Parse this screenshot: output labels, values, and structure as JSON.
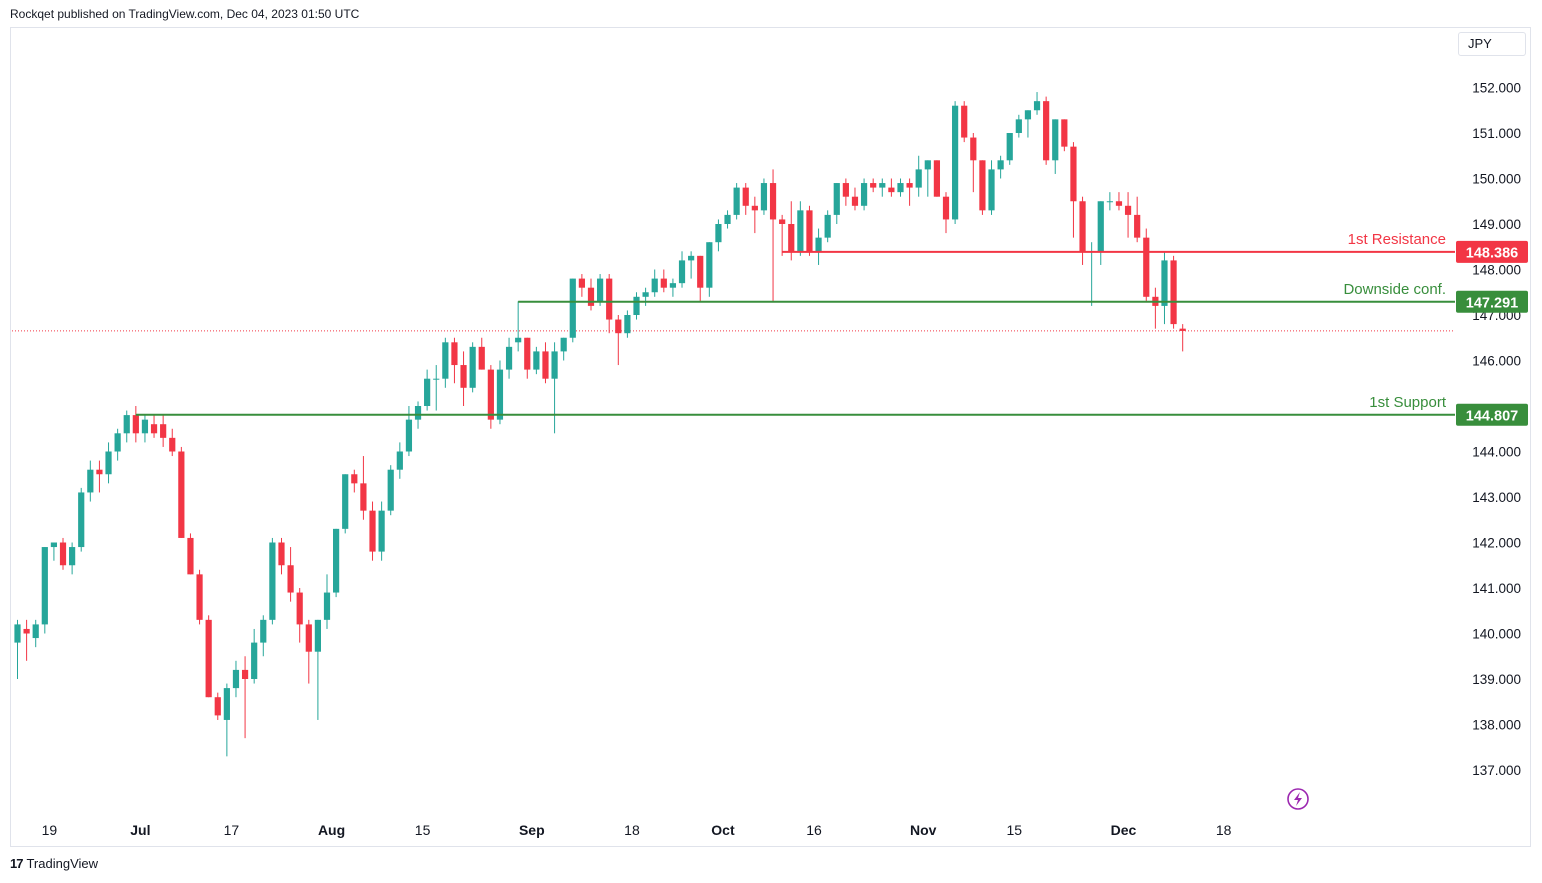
{
  "header": {
    "published_text": "Rockqet published on TradingView.com, Dec 04, 2023 01:50 UTC"
  },
  "currency": "JPY",
  "footer": {
    "brand": "TradingView",
    "logo_glyph": "17"
  },
  "colors": {
    "up": "#26a69a",
    "down": "#f23645",
    "support": "#388e3c",
    "resistance": "#f23645"
  },
  "chart_data": {
    "type": "candlestick",
    "currency": "JPY",
    "ylim": [
      136.4,
      152.8
    ],
    "y_ticks": [
      {
        "value": 137,
        "label": "137.000"
      },
      {
        "value": 138,
        "label": "138.000"
      },
      {
        "value": 139,
        "label": "139.000"
      },
      {
        "value": 140,
        "label": "140.000"
      },
      {
        "value": 141,
        "label": "141.000"
      },
      {
        "value": 142,
        "label": "142.000"
      },
      {
        "value": 143,
        "label": "143.000"
      },
      {
        "value": 144,
        "label": "144.000"
      },
      {
        "value": 146,
        "label": "146.000"
      },
      {
        "value": 147,
        "label": "147.000"
      },
      {
        "value": 148,
        "label": "148.000"
      },
      {
        "value": 149,
        "label": "149.000"
      },
      {
        "value": 150,
        "label": "150.000"
      },
      {
        "value": 151,
        "label": "151.000"
      },
      {
        "value": 152,
        "label": "152.000"
      }
    ],
    "x_ticks": [
      {
        "label": "19",
        "bar": 3.5,
        "bold": false
      },
      {
        "label": "Jul",
        "bar": 13.5,
        "bold": true
      },
      {
        "label": "17",
        "bar": 23.5,
        "bold": false
      },
      {
        "label": "Aug",
        "bar": 34.5,
        "bold": true
      },
      {
        "label": "15",
        "bar": 44.5,
        "bold": false
      },
      {
        "label": "Sep",
        "bar": 56.5,
        "bold": true
      },
      {
        "label": "18",
        "bar": 67.5,
        "bold": false
      },
      {
        "label": "Oct",
        "bar": 77.5,
        "bold": true
      },
      {
        "label": "16",
        "bar": 87.5,
        "bold": false
      },
      {
        "label": "Nov",
        "bar": 99.5,
        "bold": true
      },
      {
        "label": "15",
        "bar": 109.5,
        "bold": false
      },
      {
        "label": "Dec",
        "bar": 121.5,
        "bold": true
      },
      {
        "label": "18",
        "bar": 132.5,
        "bold": false
      }
    ],
    "levels": [
      {
        "name": "1st Resistance",
        "value": 148.386,
        "tag": "148.386",
        "color": "#f23645",
        "start_bar": 84
      },
      {
        "name": "Downside conf.",
        "value": 147.291,
        "tag": "147.291",
        "color": "#388e3c",
        "start_bar": 55
      },
      {
        "name": "1st Support",
        "value": 144.807,
        "tag": "144.807",
        "color": "#388e3c",
        "start_bar": 13
      }
    ],
    "last_price": 146.65,
    "candles": [
      {
        "o": 139.8,
        "h": 140.3,
        "l": 139.0,
        "c": 140.2
      },
      {
        "o": 140.1,
        "h": 140.3,
        "l": 139.4,
        "c": 140.0
      },
      {
        "o": 139.9,
        "h": 140.3,
        "l": 139.7,
        "c": 140.2
      },
      {
        "o": 140.2,
        "h": 141.9,
        "l": 140.0,
        "c": 141.9
      },
      {
        "o": 141.9,
        "h": 142.0,
        "l": 141.6,
        "c": 142.0
      },
      {
        "o": 142.0,
        "h": 142.1,
        "l": 141.4,
        "c": 141.5
      },
      {
        "o": 141.5,
        "h": 142.0,
        "l": 141.3,
        "c": 141.9
      },
      {
        "o": 141.9,
        "h": 143.2,
        "l": 141.8,
        "c": 143.1
      },
      {
        "o": 143.1,
        "h": 143.8,
        "l": 142.9,
        "c": 143.6
      },
      {
        "o": 143.6,
        "h": 143.8,
        "l": 143.1,
        "c": 143.5
      },
      {
        "o": 143.5,
        "h": 144.2,
        "l": 143.3,
        "c": 144.0
      },
      {
        "o": 144.0,
        "h": 144.5,
        "l": 143.8,
        "c": 144.4
      },
      {
        "o": 144.4,
        "h": 144.9,
        "l": 144.2,
        "c": 144.8
      },
      {
        "o": 144.8,
        "h": 145.0,
        "l": 144.2,
        "c": 144.4
      },
      {
        "o": 144.4,
        "h": 144.8,
        "l": 144.2,
        "c": 144.7
      },
      {
        "o": 144.6,
        "h": 144.8,
        "l": 144.3,
        "c": 144.4
      },
      {
        "o": 144.6,
        "h": 144.8,
        "l": 144.1,
        "c": 144.3
      },
      {
        "o": 144.3,
        "h": 144.5,
        "l": 143.9,
        "c": 144.0
      },
      {
        "o": 144.0,
        "h": 144.1,
        "l": 142.1,
        "c": 142.1
      },
      {
        "o": 142.1,
        "h": 142.2,
        "l": 141.3,
        "c": 141.3
      },
      {
        "o": 141.3,
        "h": 141.4,
        "l": 140.2,
        "c": 140.3
      },
      {
        "o": 140.3,
        "h": 140.4,
        "l": 138.6,
        "c": 138.6
      },
      {
        "o": 138.6,
        "h": 138.7,
        "l": 138.1,
        "c": 138.2
      },
      {
        "o": 138.1,
        "h": 138.9,
        "l": 137.3,
        "c": 138.8
      },
      {
        "o": 138.8,
        "h": 139.4,
        "l": 138.6,
        "c": 139.2
      },
      {
        "o": 139.2,
        "h": 139.5,
        "l": 137.7,
        "c": 139.0
      },
      {
        "o": 139.0,
        "h": 140.1,
        "l": 138.9,
        "c": 139.8
      },
      {
        "o": 139.8,
        "h": 140.4,
        "l": 139.5,
        "c": 140.3
      },
      {
        "o": 140.3,
        "h": 142.1,
        "l": 140.2,
        "c": 142.0
      },
      {
        "o": 142.0,
        "h": 142.1,
        "l": 141.3,
        "c": 141.5
      },
      {
        "o": 141.5,
        "h": 141.9,
        "l": 140.7,
        "c": 140.9
      },
      {
        "o": 140.9,
        "h": 141.0,
        "l": 139.8,
        "c": 140.2
      },
      {
        "o": 140.2,
        "h": 140.3,
        "l": 138.9,
        "c": 139.6
      },
      {
        "o": 139.6,
        "h": 140.3,
        "l": 138.1,
        "c": 140.3
      },
      {
        "o": 140.3,
        "h": 141.3,
        "l": 140.1,
        "c": 140.9
      },
      {
        "o": 140.9,
        "h": 142.3,
        "l": 140.8,
        "c": 142.3
      },
      {
        "o": 142.3,
        "h": 143.5,
        "l": 142.2,
        "c": 143.5
      },
      {
        "o": 143.5,
        "h": 143.6,
        "l": 143.1,
        "c": 143.3
      },
      {
        "o": 143.3,
        "h": 143.9,
        "l": 142.5,
        "c": 142.7
      },
      {
        "o": 142.7,
        "h": 142.9,
        "l": 141.6,
        "c": 141.8
      },
      {
        "o": 141.8,
        "h": 142.9,
        "l": 141.6,
        "c": 142.7
      },
      {
        "o": 142.7,
        "h": 143.7,
        "l": 142.6,
        "c": 143.6
      },
      {
        "o": 143.6,
        "h": 144.2,
        "l": 143.4,
        "c": 144.0
      },
      {
        "o": 144.0,
        "h": 145.0,
        "l": 143.9,
        "c": 144.7
      },
      {
        "o": 144.7,
        "h": 145.1,
        "l": 144.5,
        "c": 145.0
      },
      {
        "o": 145.0,
        "h": 145.8,
        "l": 144.9,
        "c": 145.6
      },
      {
        "o": 145.6,
        "h": 145.9,
        "l": 144.9,
        "c": 145.6
      },
      {
        "o": 145.6,
        "h": 146.5,
        "l": 145.4,
        "c": 146.4
      },
      {
        "o": 146.4,
        "h": 146.5,
        "l": 145.5,
        "c": 145.9
      },
      {
        "o": 145.9,
        "h": 146.2,
        "l": 145.0,
        "c": 145.4
      },
      {
        "o": 145.4,
        "h": 146.4,
        "l": 145.3,
        "c": 146.3
      },
      {
        "o": 146.3,
        "h": 146.5,
        "l": 145.8,
        "c": 145.8
      },
      {
        "o": 145.8,
        "h": 145.9,
        "l": 144.5,
        "c": 144.7
      },
      {
        "o": 144.7,
        "h": 146.0,
        "l": 144.6,
        "c": 145.8
      },
      {
        "o": 145.8,
        "h": 146.5,
        "l": 145.6,
        "c": 146.3
      },
      {
        "o": 146.4,
        "h": 147.3,
        "l": 146.2,
        "c": 146.5
      },
      {
        "o": 146.5,
        "h": 146.5,
        "l": 145.6,
        "c": 145.8
      },
      {
        "o": 145.8,
        "h": 146.3,
        "l": 145.7,
        "c": 146.2
      },
      {
        "o": 146.2,
        "h": 146.4,
        "l": 145.5,
        "c": 145.6
      },
      {
        "o": 145.6,
        "h": 146.4,
        "l": 144.4,
        "c": 146.2
      },
      {
        "o": 146.2,
        "h": 146.5,
        "l": 146.0,
        "c": 146.5
      },
      {
        "o": 146.5,
        "h": 147.8,
        "l": 146.4,
        "c": 147.8
      },
      {
        "o": 147.8,
        "h": 147.9,
        "l": 147.4,
        "c": 147.6
      },
      {
        "o": 147.6,
        "h": 147.8,
        "l": 147.1,
        "c": 147.2
      },
      {
        "o": 147.3,
        "h": 147.9,
        "l": 147.2,
        "c": 147.8
      },
      {
        "o": 147.8,
        "h": 147.9,
        "l": 146.6,
        "c": 146.9
      },
      {
        "o": 146.9,
        "h": 147.0,
        "l": 145.9,
        "c": 146.6
      },
      {
        "o": 146.6,
        "h": 147.1,
        "l": 146.5,
        "c": 147.0
      },
      {
        "o": 147.0,
        "h": 147.5,
        "l": 146.9,
        "c": 147.4
      },
      {
        "o": 147.4,
        "h": 147.6,
        "l": 147.2,
        "c": 147.5
      },
      {
        "o": 147.5,
        "h": 148.0,
        "l": 147.4,
        "c": 147.8
      },
      {
        "o": 147.8,
        "h": 148.0,
        "l": 147.5,
        "c": 147.6
      },
      {
        "o": 147.6,
        "h": 147.8,
        "l": 147.4,
        "c": 147.7
      },
      {
        "o": 147.7,
        "h": 148.4,
        "l": 147.6,
        "c": 148.2
      },
      {
        "o": 148.2,
        "h": 148.4,
        "l": 147.8,
        "c": 148.3
      },
      {
        "o": 148.3,
        "h": 148.3,
        "l": 147.3,
        "c": 147.6
      },
      {
        "o": 147.6,
        "h": 148.6,
        "l": 147.4,
        "c": 148.6
      },
      {
        "o": 148.6,
        "h": 149.1,
        "l": 148.4,
        "c": 149.0
      },
      {
        "o": 149.0,
        "h": 149.3,
        "l": 148.9,
        "c": 149.2
      },
      {
        "o": 149.2,
        "h": 149.9,
        "l": 149.1,
        "c": 149.8
      },
      {
        "o": 149.8,
        "h": 149.9,
        "l": 149.2,
        "c": 149.4
      },
      {
        "o": 149.4,
        "h": 149.6,
        "l": 148.8,
        "c": 149.3
      },
      {
        "o": 149.3,
        "h": 150.0,
        "l": 149.2,
        "c": 149.9
      },
      {
        "o": 149.9,
        "h": 150.2,
        "l": 147.3,
        "c": 149.1
      },
      {
        "o": 149.1,
        "h": 149.2,
        "l": 148.3,
        "c": 149.0
      },
      {
        "o": 149.0,
        "h": 149.5,
        "l": 148.2,
        "c": 148.4
      },
      {
        "o": 148.4,
        "h": 149.5,
        "l": 148.3,
        "c": 149.3
      },
      {
        "o": 149.3,
        "h": 149.4,
        "l": 148.3,
        "c": 148.4
      },
      {
        "o": 148.4,
        "h": 148.9,
        "l": 148.1,
        "c": 148.7
      },
      {
        "o": 148.7,
        "h": 149.3,
        "l": 148.6,
        "c": 149.2
      },
      {
        "o": 149.2,
        "h": 149.9,
        "l": 149.0,
        "c": 149.9
      },
      {
        "o": 149.9,
        "h": 150.0,
        "l": 149.4,
        "c": 149.6
      },
      {
        "o": 149.6,
        "h": 149.8,
        "l": 149.3,
        "c": 149.4
      },
      {
        "o": 149.4,
        "h": 150.0,
        "l": 149.3,
        "c": 149.9
      },
      {
        "o": 149.9,
        "h": 150.0,
        "l": 149.7,
        "c": 149.8
      },
      {
        "o": 149.8,
        "h": 150.0,
        "l": 149.6,
        "c": 149.9
      },
      {
        "o": 149.8,
        "h": 150.0,
        "l": 149.6,
        "c": 149.7
      },
      {
        "o": 149.7,
        "h": 150.0,
        "l": 149.6,
        "c": 149.9
      },
      {
        "o": 149.9,
        "h": 150.0,
        "l": 149.4,
        "c": 149.8
      },
      {
        "o": 149.8,
        "h": 150.5,
        "l": 149.6,
        "c": 150.2
      },
      {
        "o": 150.2,
        "h": 150.4,
        "l": 149.6,
        "c": 150.4
      },
      {
        "o": 150.4,
        "h": 150.4,
        "l": 149.6,
        "c": 149.6
      },
      {
        "o": 149.6,
        "h": 149.7,
        "l": 148.8,
        "c": 149.1
      },
      {
        "o": 149.1,
        "h": 151.7,
        "l": 149.0,
        "c": 151.6
      },
      {
        "o": 151.6,
        "h": 151.7,
        "l": 150.8,
        "c": 150.9
      },
      {
        "o": 150.9,
        "h": 151.0,
        "l": 149.7,
        "c": 150.4
      },
      {
        "o": 150.4,
        "h": 150.4,
        "l": 149.2,
        "c": 149.3
      },
      {
        "o": 149.3,
        "h": 150.4,
        "l": 149.2,
        "c": 150.2
      },
      {
        "o": 150.2,
        "h": 150.5,
        "l": 150.0,
        "c": 150.4
      },
      {
        "o": 150.4,
        "h": 151.0,
        "l": 150.3,
        "c": 151.0
      },
      {
        "o": 151.0,
        "h": 151.4,
        "l": 150.9,
        "c": 151.3
      },
      {
        "o": 151.3,
        "h": 151.5,
        "l": 150.9,
        "c": 151.5
      },
      {
        "o": 151.5,
        "h": 151.9,
        "l": 151.4,
        "c": 151.7
      },
      {
        "o": 151.7,
        "h": 151.8,
        "l": 150.3,
        "c": 150.4
      },
      {
        "o": 150.4,
        "h": 151.3,
        "l": 150.1,
        "c": 151.3
      },
      {
        "o": 151.3,
        "h": 151.3,
        "l": 150.6,
        "c": 150.7
      },
      {
        "o": 150.7,
        "h": 150.8,
        "l": 148.7,
        "c": 149.5
      },
      {
        "o": 149.5,
        "h": 149.6,
        "l": 148.1,
        "c": 148.4
      },
      {
        "o": 148.4,
        "h": 148.6,
        "l": 147.2,
        "c": 148.4
      },
      {
        "o": 148.4,
        "h": 149.5,
        "l": 148.1,
        "c": 149.5
      },
      {
        "o": 149.5,
        "h": 149.7,
        "l": 149.3,
        "c": 149.5
      },
      {
        "o": 149.5,
        "h": 149.7,
        "l": 149.3,
        "c": 149.4
      },
      {
        "o": 149.4,
        "h": 149.7,
        "l": 148.7,
        "c": 149.2
      },
      {
        "o": 149.2,
        "h": 149.6,
        "l": 148.6,
        "c": 148.7
      },
      {
        "o": 148.7,
        "h": 148.9,
        "l": 147.3,
        "c": 147.4
      },
      {
        "o": 147.4,
        "h": 147.6,
        "l": 146.7,
        "c": 147.2
      },
      {
        "o": 147.2,
        "h": 148.4,
        "l": 146.8,
        "c": 148.2
      },
      {
        "o": 148.2,
        "h": 148.3,
        "l": 146.7,
        "c": 146.8
      },
      {
        "o": 146.7,
        "h": 146.8,
        "l": 146.2,
        "c": 146.65
      }
    ]
  }
}
